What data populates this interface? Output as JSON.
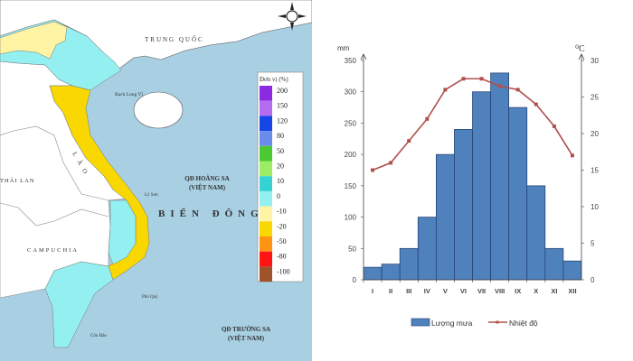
{
  "map": {
    "labels": {
      "china": "TRUNG QUỐC",
      "bach_long_vi": "Bạch Long Vĩ",
      "laos": "LÀO",
      "thailand": "THÁI LAN",
      "hoang_sa_1": "QĐ HOÀNG SA",
      "hoang_sa_2": "(VIỆT NAM)",
      "ly_son": "Lý Sơn",
      "bien_dong": "BIỂN ĐÔNG",
      "cambodia": "CAMPUCHIA",
      "phu_quy": "Phú Quý",
      "con_dao": "Côn Đảo",
      "truong_sa_1": "QĐ TRƯỜNG SA",
      "truong_sa_2": "(VIỆT NAM)"
    },
    "legend": {
      "title": "Đơn vị (%)",
      "items": [
        {
          "label": "200",
          "color": "#8a2be2"
        },
        {
          "label": "150",
          "color": "#b46cf0"
        },
        {
          "label": "120",
          "color": "#1646e6"
        },
        {
          "label": "80",
          "color": "#6a8cea"
        },
        {
          "label": "50",
          "color": "#4cc832"
        },
        {
          "label": "20",
          "color": "#9cec64"
        },
        {
          "label": "10",
          "color": "#34d2d2"
        },
        {
          "label": "0",
          "color": "#94f0f0"
        },
        {
          "label": "-10",
          "color": "#fff4a4"
        },
        {
          "label": "-20",
          "color": "#f8d800"
        },
        {
          "label": "-50",
          "color": "#ff9414"
        },
        {
          "label": "-80",
          "color": "#ff1414"
        },
        {
          "label": "-100",
          "color": "#a0522d"
        }
      ]
    },
    "colors": {
      "sea": "#a9cfe2",
      "land": "#ffffff",
      "cyan": "#94f0f0",
      "yellow": "#f8d800",
      "pale_yellow": "#fff4a4"
    }
  },
  "chart_data": {
    "type": "bar+line",
    "categories": [
      "I",
      "II",
      "III",
      "IV",
      "V",
      "VI",
      "VII",
      "VIII",
      "IX",
      "X",
      "XI",
      "XII"
    ],
    "series": [
      {
        "name": "Lượng mưa",
        "type": "bar",
        "axis": "left",
        "color": "#4f81bd",
        "values": [
          20,
          25,
          50,
          100,
          200,
          240,
          300,
          330,
          275,
          150,
          50,
          30
        ]
      },
      {
        "name": "Nhiệt độ",
        "type": "line",
        "axis": "right",
        "color": "#b0504c",
        "values": [
          15,
          16,
          19,
          22,
          26,
          27.5,
          27.5,
          26.5,
          26,
          24,
          21,
          17
        ]
      }
    ],
    "y_left": {
      "label": "mm",
      "range": [
        0,
        350
      ],
      "ticks": [
        0,
        50,
        100,
        150,
        200,
        250,
        300,
        350
      ]
    },
    "y_right": {
      "label": "⁰C",
      "range": [
        0,
        30
      ],
      "ticks": [
        0,
        5,
        10,
        15,
        20,
        25,
        30
      ]
    },
    "grid": false,
    "legend_position": "bottom"
  }
}
